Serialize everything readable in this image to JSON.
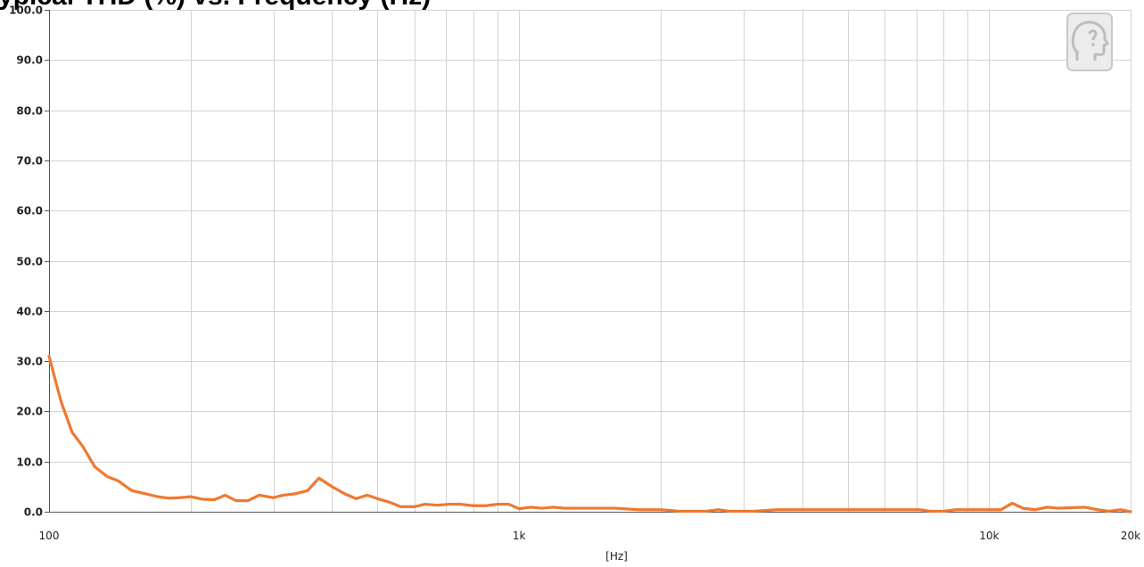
{
  "chart_data": {
    "type": "line",
    "title": "ypical THD (%) vs. Frequency (Hz)",
    "xlabel": "[Hz]",
    "ylabel": "",
    "xscale": "log",
    "xlim": [
      100,
      20000
    ],
    "ylim": [
      0,
      100
    ],
    "grid": true,
    "x_tick_labels": [
      {
        "value": 100,
        "label": "100"
      },
      {
        "value": 1000,
        "label": "1k"
      },
      {
        "value": 10000,
        "label": "10k"
      },
      {
        "value": 20000,
        "label": "20k"
      }
    ],
    "y_tick_labels": [
      "0.0",
      "10.0",
      "20.0",
      "30.0",
      "40.0",
      "50.0",
      "60.0",
      "70.0",
      "80.0",
      "90.0",
      "100.0"
    ],
    "series": [
      {
        "color": "#f07830",
        "points": [
          [
            100,
            31.0
          ],
          [
            106,
            22.0
          ],
          [
            112,
            15.8
          ],
          [
            118,
            13.0
          ],
          [
            125,
            9.0
          ],
          [
            133,
            7.0
          ],
          [
            140,
            6.2
          ],
          [
            150,
            4.2
          ],
          [
            160,
            3.6
          ],
          [
            170,
            3.0
          ],
          [
            180,
            2.7
          ],
          [
            190,
            2.8
          ],
          [
            200,
            3.0
          ],
          [
            212,
            2.5
          ],
          [
            225,
            2.4
          ],
          [
            237,
            3.3
          ],
          [
            250,
            2.2
          ],
          [
            265,
            2.2
          ],
          [
            280,
            3.3
          ],
          [
            300,
            2.8
          ],
          [
            315,
            3.3
          ],
          [
            335,
            3.6
          ],
          [
            355,
            4.2
          ],
          [
            375,
            6.7
          ],
          [
            400,
            5.0
          ],
          [
            425,
            3.6
          ],
          [
            450,
            2.6
          ],
          [
            475,
            3.3
          ],
          [
            500,
            2.6
          ],
          [
            530,
            1.9
          ],
          [
            560,
            1.0
          ],
          [
            600,
            1.0
          ],
          [
            630,
            1.5
          ],
          [
            670,
            1.3
          ],
          [
            710,
            1.5
          ],
          [
            750,
            1.5
          ],
          [
            800,
            1.2
          ],
          [
            850,
            1.2
          ],
          [
            900,
            1.5
          ],
          [
            950,
            1.5
          ],
          [
            1000,
            0.6
          ],
          [
            1060,
            0.9
          ],
          [
            1120,
            0.7
          ],
          [
            1180,
            0.9
          ],
          [
            1250,
            0.7
          ],
          [
            1400,
            0.7
          ],
          [
            1600,
            0.7
          ],
          [
            1800,
            0.4
          ],
          [
            2000,
            0.4
          ],
          [
            2200,
            0.1
          ],
          [
            2500,
            0.1
          ],
          [
            2650,
            0.4
          ],
          [
            2800,
            0.1
          ],
          [
            3150,
            0.1
          ],
          [
            3550,
            0.4
          ],
          [
            4000,
            0.4
          ],
          [
            5000,
            0.4
          ],
          [
            6300,
            0.4
          ],
          [
            7100,
            0.4
          ],
          [
            7500,
            0.1
          ],
          [
            8000,
            0.1
          ],
          [
            8500,
            0.4
          ],
          [
            9000,
            0.4
          ],
          [
            10000,
            0.4
          ],
          [
            10600,
            0.4
          ],
          [
            11200,
            1.7
          ],
          [
            11800,
            0.7
          ],
          [
            12500,
            0.4
          ],
          [
            13300,
            0.9
          ],
          [
            14000,
            0.7
          ],
          [
            15000,
            0.8
          ],
          [
            16000,
            0.9
          ],
          [
            17000,
            0.4
          ],
          [
            18000,
            0.1
          ],
          [
            19000,
            0.4
          ],
          [
            20000,
            0.0
          ]
        ]
      }
    ]
  },
  "logo_icon": "head-profile-icon"
}
